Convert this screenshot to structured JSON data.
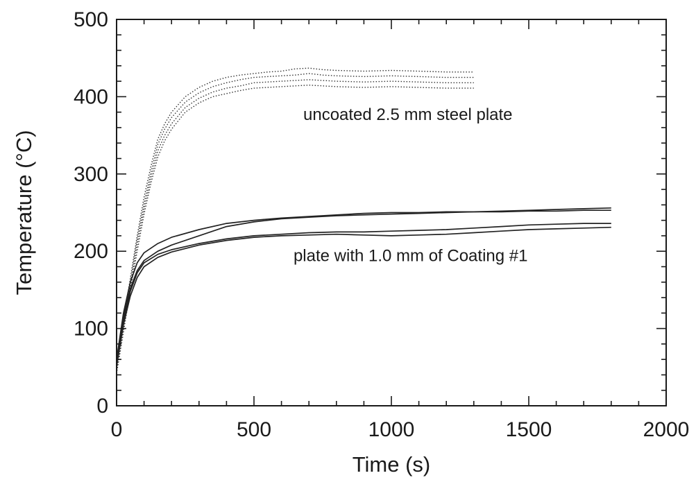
{
  "chart_data": {
    "type": "line",
    "xlabel": "Time (s)",
    "ylabel": "Temperature (°C)",
    "xlim": [
      0,
      2000
    ],
    "ylim": [
      0,
      500
    ],
    "xticks": [
      0,
      500,
      1000,
      1500,
      2000
    ],
    "yticks": [
      0,
      100,
      200,
      300,
      400,
      500
    ],
    "x_tick_labels": [
      "0",
      "500",
      "1000",
      "1500",
      "2000"
    ],
    "y_tick_labels": [
      "0",
      "100",
      "200",
      "300",
      "400",
      "500"
    ],
    "grid": false,
    "legend": "none",
    "annotations": [
      {
        "text": "uncoated 2.5 mm steel plate",
        "x": 1060,
        "y": 370
      },
      {
        "text": "plate with 1.0 mm of Coating #1",
        "x": 1070,
        "y": 187
      }
    ],
    "series": [
      {
        "group": "uncoated",
        "style": "dotted",
        "x": [
          0,
          25,
          50,
          75,
          100,
          125,
          150,
          175,
          200,
          250,
          300,
          350,
          400,
          450,
          500,
          550,
          600,
          650,
          700,
          750,
          800,
          900,
          1000,
          1100,
          1200,
          1300
        ],
        "y": [
          50,
          110,
          165,
          220,
          270,
          310,
          345,
          365,
          380,
          400,
          412,
          420,
          425,
          428,
          430,
          432,
          433,
          436,
          437,
          435,
          434,
          433,
          434,
          433,
          432,
          432
        ]
      },
      {
        "group": "uncoated",
        "style": "dotted",
        "x": [
          0,
          25,
          50,
          75,
          100,
          125,
          150,
          175,
          200,
          250,
          300,
          350,
          400,
          450,
          500,
          550,
          600,
          650,
          700,
          750,
          800,
          900,
          1000,
          1100,
          1200,
          1300
        ],
        "y": [
          48,
          105,
          160,
          215,
          262,
          302,
          338,
          358,
          373,
          393,
          405,
          413,
          418,
          422,
          425,
          426,
          427,
          428,
          430,
          428,
          427,
          426,
          427,
          426,
          425,
          425
        ]
      },
      {
        "group": "uncoated",
        "style": "dotted",
        "x": [
          0,
          25,
          50,
          75,
          100,
          125,
          150,
          175,
          200,
          250,
          300,
          350,
          400,
          450,
          500,
          550,
          600,
          650,
          700,
          750,
          800,
          900,
          1000,
          1100,
          1200,
          1300
        ],
        "y": [
          45,
          100,
          155,
          208,
          255,
          295,
          330,
          350,
          365,
          386,
          398,
          406,
          411,
          414,
          418,
          419,
          420,
          421,
          422,
          421,
          420,
          419,
          420,
          419,
          418,
          418
        ]
      },
      {
        "group": "uncoated",
        "style": "dotted",
        "x": [
          0,
          25,
          50,
          75,
          100,
          125,
          150,
          175,
          200,
          250,
          300,
          350,
          400,
          450,
          500,
          550,
          600,
          650,
          700,
          750,
          800,
          900,
          1000,
          1100,
          1200,
          1300
        ],
        "y": [
          42,
          95,
          150,
          200,
          248,
          288,
          322,
          343,
          358,
          380,
          392,
          400,
          404,
          408,
          411,
          412,
          413,
          414,
          415,
          414,
          413,
          412,
          413,
          412,
          411,
          411
        ]
      },
      {
        "group": "coated",
        "style": "solid",
        "x": [
          0,
          25,
          50,
          75,
          100,
          150,
          200,
          300,
          400,
          500,
          600,
          700,
          800,
          900,
          1000,
          1100,
          1200,
          1300,
          1400,
          1500,
          1600,
          1700,
          1800
        ],
        "y": [
          60,
          120,
          160,
          185,
          198,
          210,
          218,
          228,
          236,
          240,
          243,
          245,
          247,
          249,
          250,
          250,
          251,
          251,
          252,
          253,
          254,
          255,
          256
        ]
      },
      {
        "group": "coated",
        "style": "solid",
        "x": [
          0,
          25,
          50,
          75,
          100,
          150,
          200,
          300,
          400,
          500,
          600,
          700,
          800,
          900,
          1000,
          1100,
          1200,
          1300,
          1400,
          1500,
          1600,
          1700,
          1800
        ],
        "y": [
          58,
          115,
          152,
          175,
          188,
          200,
          208,
          220,
          232,
          238,
          242,
          244,
          246,
          247,
          248,
          249,
          250,
          251,
          251,
          252,
          252,
          253,
          253
        ]
      },
      {
        "group": "coated",
        "style": "solid",
        "x": [
          0,
          25,
          50,
          75,
          100,
          150,
          200,
          300,
          400,
          500,
          600,
          700,
          800,
          900,
          1000,
          1100,
          1200,
          1300,
          1400,
          1500,
          1600,
          1700,
          1800
        ],
        "y": [
          55,
          110,
          148,
          172,
          185,
          196,
          202,
          210,
          216,
          220,
          222,
          224,
          225,
          225,
          226,
          227,
          228,
          230,
          232,
          234,
          235,
          236,
          236
        ]
      },
      {
        "group": "coated",
        "style": "solid",
        "x": [
          0,
          25,
          50,
          75,
          100,
          150,
          200,
          300,
          400,
          500,
          600,
          700,
          800,
          900,
          1000,
          1100,
          1200,
          1300,
          1400,
          1500,
          1600,
          1700,
          1800
        ],
        "y": [
          52,
          105,
          142,
          166,
          180,
          192,
          199,
          208,
          214,
          218,
          220,
          221,
          222,
          221,
          220,
          221,
          222,
          224,
          226,
          228,
          229,
          230,
          231
        ]
      }
    ]
  }
}
